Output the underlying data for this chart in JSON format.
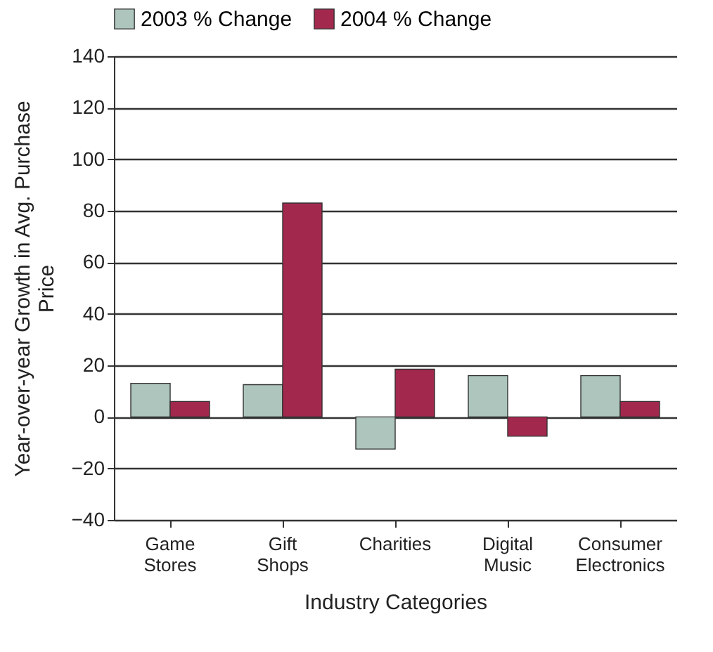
{
  "chart_data": {
    "type": "bar",
    "xlabel": "Industry Categories",
    "ylabel": "Year-over-year Growth in Avg. Purchase Price",
    "categories": [
      "Game Stores",
      "Gift Shops",
      "Charities",
      "Digital Music",
      "Consumer Electronics"
    ],
    "series": [
      {
        "name": "2003 % Change",
        "color": "#adc5bd",
        "values": [
          13,
          12.5,
          -12.5,
          16,
          16
        ]
      },
      {
        "name": "2004 % Change",
        "color": "#a3284d",
        "values": [
          6,
          83,
          18.5,
          -7.5,
          6
        ]
      }
    ],
    "ylim": [
      -40,
      140
    ],
    "yticks": [
      -40,
      -20,
      0,
      20,
      40,
      60,
      80,
      100,
      120,
      140
    ],
    "grid": "y",
    "legend": "top"
  }
}
